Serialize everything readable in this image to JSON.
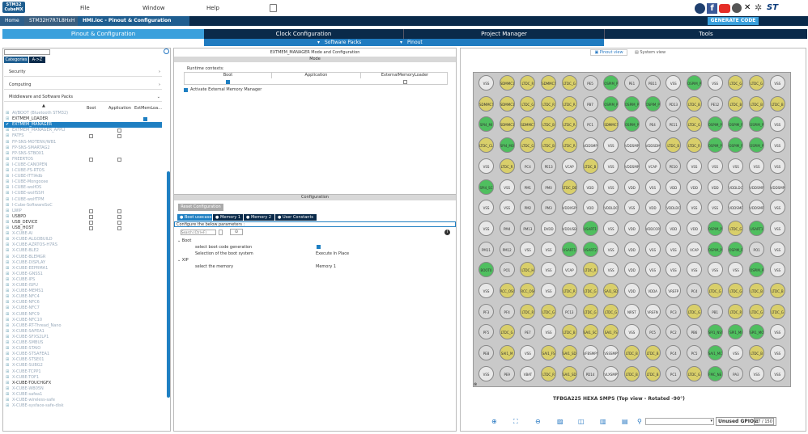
{
  "logo": {
    "line1": "STM32",
    "line2": "CubeMX"
  },
  "menus": [
    "File",
    "Window",
    "Help"
  ],
  "breadcrumbs": [
    "Home",
    "STM32H7R7L8HxH",
    "HMI.ioc - Pinout & Configuration"
  ],
  "generate_label": "GENERATE CODE",
  "main_tabs": [
    "Pinout & Configuration",
    "Clock Configuration",
    "Project Manager",
    "Tools"
  ],
  "sub_tabs": [
    "Software Packs",
    "Pinout"
  ],
  "left": {
    "tabs": [
      "Categories",
      "A->Z"
    ],
    "categories": [
      "Security",
      "Computing",
      "Middleware and Software Packs"
    ],
    "col_headers": [
      "Boot",
      "Application",
      "ExtMemLoa..."
    ],
    "items": [
      "AI/BOOT (Bluetooth STM32)",
      "EXTMEM_LOADER",
      "EXTMEM_MANAGER",
      "EXTMEM_MANAGER_APPLI",
      "FATFS",
      "FP-SNS-MOTENV/WB1",
      "FP-SNS-SMARTAG2",
      "FP-SNS-STBOX1",
      "FREERTOS",
      "I-CUBE-CANOPEN",
      "I-CUBE-FS-RTOS",
      "I-CUBE-ITTIAdb",
      "I-CUBE-Mongoose",
      "I-CUBE-wolfOS",
      "I-CUBE-wolfSSH",
      "I-CUBE-wolfTPM",
      "I-Cube-SoftwareSoC",
      "LWIP",
      "USBPD",
      "USB_DEVICE",
      "USB_HOST",
      "X-CUBE-AI",
      "X-CUBE-ALGOBUILD",
      "X-CUBE-AZRTOS-H7RS",
      "X-CUBE-BLE2",
      "X-CUBE-BLEMGR",
      "X-CUBE-DISPLAY",
      "X-CUBE-EEPRMA1",
      "X-CUBE-GNSS1",
      "X-CUBE-IPS",
      "X-CUBE-ISPU",
      "X-CUBE-MEMS1",
      "X-CUBE-NFC4",
      "X-CUBE-NFC6",
      "X-CUBE-NFC7",
      "X-CUBE-NFC9",
      "X-CUBE-NFC10",
      "X-CUBE-RT-Thread_Nano",
      "X-CUBE-SAFEA1",
      "X-CUBE-SFXS2LP1",
      "X-CUBE-SMBUS",
      "X-CUBE-STAIO",
      "X-CUBE-STSAFEA1",
      "X-CUBE-STSE01",
      "X-CUBE-SUBG2",
      "X-CUBE-TCPP1",
      "X-CUBE-TOF1",
      "X-CUBE-TOUCHGFX",
      "X-CUBE-WB05N",
      "X-CUBE-safea1",
      "X-CUBE-wireless-safe",
      "X-CUBE-sysface-safe-disk"
    ]
  },
  "mid": {
    "title": "EXTMEM_MANAGER Mode and Configuration",
    "mode_hdr": "Mode",
    "runtime": "Runtime contexts:",
    "rt_cols": [
      "Boot",
      "Application",
      "ExternalMemoryLoader"
    ],
    "activate": "Activate External Memory Manager",
    "config_hdr": "Configuration",
    "reset": "Reset Configuration",
    "cfg_tabs": [
      "Boot usecase",
      "Memory 1",
      "Memory 2",
      "User Constants"
    ],
    "configure_text": "Configure the below parameters :",
    "search_ph": "Search (Ctrl+F)",
    "groups": [
      {
        "name": "Boot",
        "params": [
          {
            "label": "select boot code generation",
            "value": ""
          },
          {
            "label": "Selection of the boot system",
            "value": "Execute In Place"
          }
        ]
      },
      {
        "name": "XIP",
        "params": [
          {
            "label": "select the memory",
            "value": "Memory 1"
          }
        ]
      }
    ]
  },
  "right": {
    "views": [
      "Pinout view",
      "System view"
    ],
    "chip_label": "TFBGA225 HEXA SMPS (Top view - Rotated -90°)",
    "unused_label": "Unused GPIOs:",
    "unused_value": "37 / 150"
  },
  "pins": [
    [
      "VSS",
      "SDMMC1",
      "LTDC_R",
      "SDMMC1",
      "LTDC_G",
      "PE5",
      "OSPIM_P",
      "PE1",
      "PB11",
      "VSS",
      "OSPIM_P",
      "VSS",
      "LTDC_G",
      "LTDC_G",
      "VSS"
    ],
    [
      "SDMMC1",
      "SDMMC1",
      "LTDC_G",
      "LTDC_R",
      "LTDC_R",
      "PB7",
      "OSPIM_P",
      "OSPIM_P",
      "OSPIM_P",
      "PD13",
      "LTDC_B",
      "PE12",
      "LTDC_B",
      "LTDC_B",
      "LTDC_B"
    ],
    [
      "SPI4_MI",
      "SDMMC1",
      "SDMMC1",
      "LTDC_B",
      "LTDC_R",
      "PC1",
      "SDMMC1",
      "OSPIM_P",
      "PE4",
      "PE11",
      "LTDC_G",
      "OSPIM_P",
      "OSPIM_P",
      "OSPIM_P",
      "VSS"
    ],
    [
      "LTDC_CL",
      "SPI4_MO",
      "LTDC_G",
      "LTDC_B",
      "LTDC_R",
      "VDDSMPS",
      "VSS",
      "VDDSMPS",
      "VDDSDMMC",
      "LTDC_B",
      "LTDC_R",
      "OSPIM_P",
      "OSPIM_P",
      "OSPIM_P",
      "VSS"
    ],
    [
      "VSS",
      "LTDC_R",
      "PC4",
      "PE13",
      "VCAP",
      "LTDC_B",
      "VSS",
      "VDDSMPS",
      "VCAP",
      "PE10",
      "VSS",
      "VSS",
      "VSS",
      "VSS",
      "VSS"
    ],
    [
      "SPI4_SC",
      "VSS",
      "PM1",
      "PM0",
      "LTDC_DE",
      "VDD",
      "VSS",
      "VDD",
      "VSS",
      "VDD",
      "VDD",
      "VDD",
      "VDDLDO",
      "VDDSMPS",
      "VDDSMPS"
    ],
    [
      "VSS",
      "VSS",
      "PM2",
      "PM3",
      "VDDXSPI",
      "VDD",
      "VDDLDO",
      "VSS",
      "VDD",
      "VDDLDO",
      "VSS",
      "VSS",
      "VDDSMPS",
      "VDDSMPS",
      "VSS"
    ],
    [
      "VSS",
      "PM4",
      "PM13",
      "DVDD",
      "VDDUSB",
      "USART1",
      "VSS",
      "VDD",
      "VDDCORE",
      "VDD",
      "VDD",
      "OSPIM_P",
      "LTDC_G",
      "USART1",
      "VSS"
    ],
    [
      "PM11",
      "PM12",
      "VSS",
      "VSS",
      "USART1",
      "USART2",
      "VSS",
      "VDD",
      "VSS",
      "VSS",
      "VCAP",
      "OSPIM_P",
      "OSPIM_P",
      "PO1",
      "VSS"
    ],
    [
      "BOOT0",
      "PO1",
      "LTDC_H",
      "VSS",
      "VCAP",
      "LTDC_R",
      "VSS",
      "VDD",
      "VSS",
      "VSS",
      "VSS",
      "VSS",
      "VSS",
      "OSPIM_P",
      "VSS"
    ],
    [
      "VSS",
      "RCC_OSC",
      "RCC_OSC",
      "VSS",
      "LTDC_R",
      "LTDC_G",
      "SAI1_SD",
      "VDD",
      "VDDA",
      "VREFP",
      "PC4",
      "LTDC_G",
      "LTDC_G",
      "LTDC_B",
      "LTDC_B"
    ],
    [
      "PF3",
      "PF4",
      "LTDC_R",
      "LTDC_G",
      "PC13",
      "LTDC_G",
      "LTDC_G",
      "NRST",
      "VREFN",
      "PC3",
      "LTDC_G",
      "PB1",
      "LTDC_R",
      "LTDC_G",
      "LTDC_G"
    ],
    [
      "PF5",
      "LTDC_G",
      "PE7",
      "VSS",
      "LTDC_B",
      "SAI1_SC",
      "SAI1_FS",
      "VSS",
      "PC5",
      "PC2",
      "PB6",
      "SPI1_NSS",
      "SPI1_MI",
      "SPI1_MO",
      "VSS"
    ],
    [
      "PE8",
      "SAI1_M",
      "VSS",
      "SAI1_FS",
      "SAI1_SD",
      "VFBSMPS",
      "VSSSMPS",
      "LTDC_B",
      "LTDC_B",
      "PC4",
      "PC5",
      "SAI1_MC",
      "VSS",
      "LTDC_B",
      "VSS"
    ],
    [
      "VSS",
      "PE9",
      "VBAT",
      "LTDC_R",
      "SAI1_SD",
      "PD14",
      "VLXSMPS",
      "LTDC_B",
      "LTDC_B",
      "PC1",
      "LTDC_G",
      "FMC_NE",
      "PA3",
      "VSS",
      "VSS"
    ]
  ]
}
